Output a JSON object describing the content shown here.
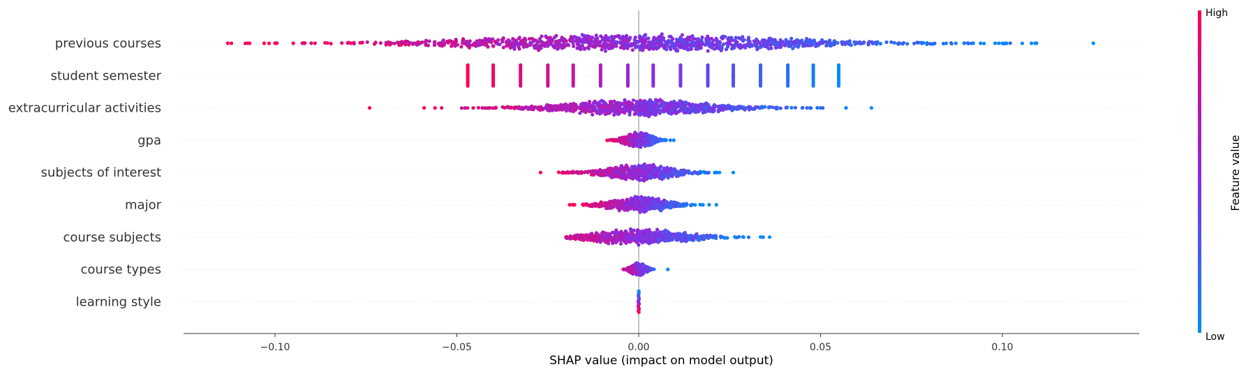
{
  "chart_data": {
    "type": "scatter",
    "subtype": "shap-beeswarm",
    "title": "",
    "xlabel": "SHAP value (impact on model output)",
    "ylabel": "",
    "xlim": [
      -0.125,
      0.137
    ],
    "x_ticks": [
      -0.1,
      -0.05,
      0.0,
      0.05,
      0.1
    ],
    "x_tick_labels": [
      "−0.10",
      "−0.05",
      "0.00",
      "0.05",
      "0.10"
    ],
    "grid": false,
    "zero_line": 0.0,
    "colorbar": {
      "title": "Feature value",
      "high_label": "High",
      "low_label": "Low",
      "high_color": "#ff0052",
      "mid_color": "#8a2be2",
      "low_color": "#008bfb",
      "placement": "right"
    },
    "features": [
      {
        "name": "previous courses",
        "min": -0.113,
        "max": 0.125,
        "distribution": "wide",
        "low_value_direction": "positive",
        "outliers": [
          -0.113,
          -0.112,
          -0.107,
          -0.103,
          -0.1,
          -0.095,
          -0.092,
          -0.089,
          0.092,
          0.094,
          0.098,
          0.099,
          0.1,
          0.101,
          0.108,
          0.109,
          0.125
        ]
      },
      {
        "name": "student semester",
        "discrete_x": [
          -0.047,
          -0.04,
          -0.0325,
          -0.025,
          -0.018,
          -0.0105,
          -0.003,
          0.004,
          0.0115,
          0.019,
          0.026,
          0.0335,
          0.041,
          0.048,
          0.055
        ]
      },
      {
        "name": "extracurricular activities",
        "min": -0.074,
        "max": 0.064,
        "distribution": "medium",
        "low_value_direction": "positive",
        "outliers": [
          -0.074,
          -0.059,
          -0.056,
          -0.043,
          -0.041,
          0.05,
          0.057,
          0.064
        ]
      },
      {
        "name": "gpa",
        "min": -0.01,
        "max": 0.01,
        "distribution": "narrow",
        "low_value_direction": "positive",
        "outliers": []
      },
      {
        "name": "subjects of interest",
        "min": -0.027,
        "max": 0.026,
        "distribution": "narrow",
        "low_value_direction": "positive",
        "outliers": [
          -0.027,
          -0.015,
          -0.014,
          0.014,
          0.021,
          0.026
        ]
      },
      {
        "name": "major",
        "min": -0.019,
        "max": 0.022,
        "distribution": "narrow",
        "low_value_direction": "positive",
        "outliers": [
          -0.019,
          -0.012
        ]
      },
      {
        "name": "course subjects",
        "min": -0.02,
        "max": 0.036,
        "distribution": "narrow",
        "low_value_direction": "positive",
        "outliers": [
          -0.02,
          -0.018,
          -0.015,
          -0.013,
          0.01,
          0.012,
          0.014,
          0.036
        ]
      },
      {
        "name": "course types",
        "min": -0.005,
        "max": 0.008,
        "distribution": "tight",
        "low_value_direction": "positive",
        "outliers": [
          0.008
        ]
      },
      {
        "name": "learning style",
        "min": -0.0005,
        "max": 0.0005,
        "distribution": "stacked",
        "low_value_direction": "positive",
        "outliers": []
      }
    ]
  }
}
